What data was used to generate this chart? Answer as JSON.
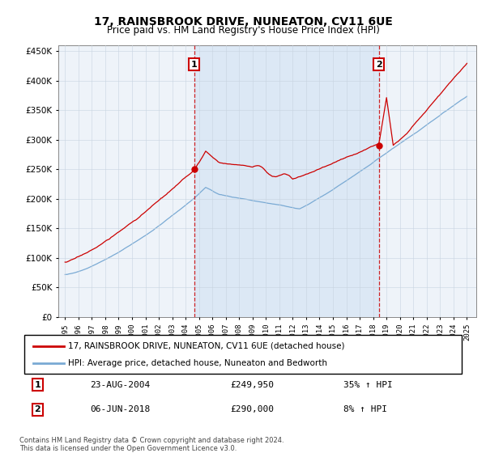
{
  "title": "17, RAINSBROOK DRIVE, NUNEATON, CV11 6UE",
  "subtitle": "Price paid vs. HM Land Registry's House Price Index (HPI)",
  "ytick_values": [
    0,
    50000,
    100000,
    150000,
    200000,
    250000,
    300000,
    350000,
    400000,
    450000
  ],
  "ylim": [
    0,
    460000
  ],
  "sale1_date": "23-AUG-2004",
  "sale1_price": 249950,
  "sale1_hpi_pct": "35%",
  "sale2_date": "06-JUN-2018",
  "sale2_price": 290000,
  "sale2_hpi_pct": "8%",
  "legend_red": "17, RAINSBROOK DRIVE, NUNEATON, CV11 6UE (detached house)",
  "legend_blue": "HPI: Average price, detached house, Nuneaton and Bedworth",
  "footer": "Contains HM Land Registry data © Crown copyright and database right 2024.\nThis data is licensed under the Open Government Licence v3.0.",
  "red_color": "#cc0000",
  "blue_color": "#7aaad4",
  "shade_color": "#dce8f5",
  "marker1_year": 2004.646,
  "marker1_y": 249950,
  "marker2_year": 2018.43,
  "marker2_y": 290000,
  "background_color": "#ffffff",
  "chart_bg": "#eef3f9",
  "grid_color": "#c8d4e0",
  "xlim_left": 1994.5,
  "xlim_right": 2025.7
}
